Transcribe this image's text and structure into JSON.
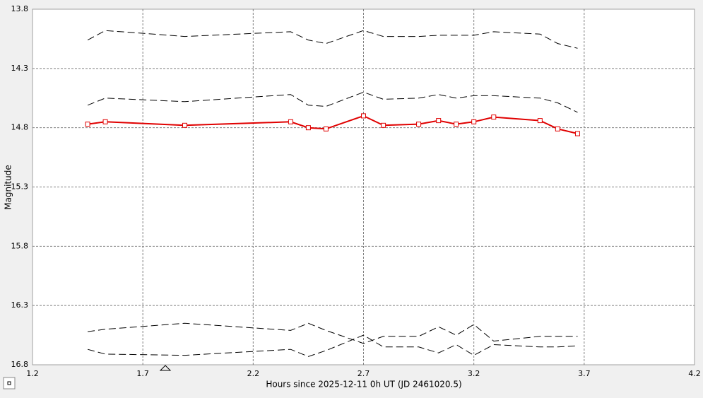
{
  "chart_data": {
    "type": "line",
    "x_label": "Hours since 2025-12-11 0h UT (JD 2461020.5)",
    "y_label": "Magnitude",
    "xlim": [
      1.2,
      4.2
    ],
    "xticks": [
      1.2,
      1.7,
      2.2,
      2.7,
      3.2,
      3.7,
      4.2
    ],
    "ylim": [
      13.8,
      16.8
    ],
    "yticks": [
      13.8,
      14.3,
      14.8,
      15.3,
      15.8,
      16.3,
      16.8
    ],
    "y_inverted": true,
    "grid": true,
    "x": [
      1.45,
      1.53,
      1.89,
      2.37,
      2.45,
      2.53,
      2.7,
      2.79,
      2.95,
      3.04,
      3.12,
      3.2,
      3.29,
      3.5,
      3.58,
      3.67
    ],
    "series": [
      {
        "color": "#000000",
        "line_style": "dashed",
        "marker": "none",
        "values": [
          14.06,
          13.98,
          14.03,
          13.99,
          14.06,
          14.09,
          13.98,
          14.03,
          14.03,
          14.02,
          14.02,
          14.02,
          13.99,
          14.01,
          14.09,
          14.13
        ]
      },
      {
        "color": "#000000",
        "line_style": "dashed",
        "marker": "none",
        "values": [
          14.61,
          14.55,
          14.58,
          14.52,
          14.61,
          14.62,
          14.5,
          14.56,
          14.55,
          14.52,
          14.55,
          14.53,
          14.53,
          14.55,
          14.59,
          14.67
        ]
      },
      {
        "color": "#e00000",
        "line_style": "solid",
        "marker": "square",
        "values": [
          14.77,
          14.75,
          14.78,
          14.75,
          14.8,
          14.81,
          14.7,
          14.78,
          14.77,
          14.74,
          14.77,
          14.75,
          14.71,
          14.74,
          14.81,
          14.85
        ]
      },
      {
        "color": "#000000",
        "line_style": "dashed",
        "marker": "none",
        "values": [
          16.52,
          16.5,
          16.45,
          16.51,
          16.45,
          16.51,
          16.62,
          16.56,
          16.56,
          16.48,
          16.55,
          16.46,
          16.6,
          16.56,
          16.56,
          16.56
        ]
      },
      {
        "color": "#000000",
        "line_style": "dashed",
        "marker": "none",
        "values": [
          16.67,
          16.71,
          16.72,
          16.67,
          16.73,
          16.68,
          16.55,
          16.65,
          16.65,
          16.7,
          16.63,
          16.72,
          16.63,
          16.65,
          16.65,
          16.64
        ]
      }
    ]
  }
}
